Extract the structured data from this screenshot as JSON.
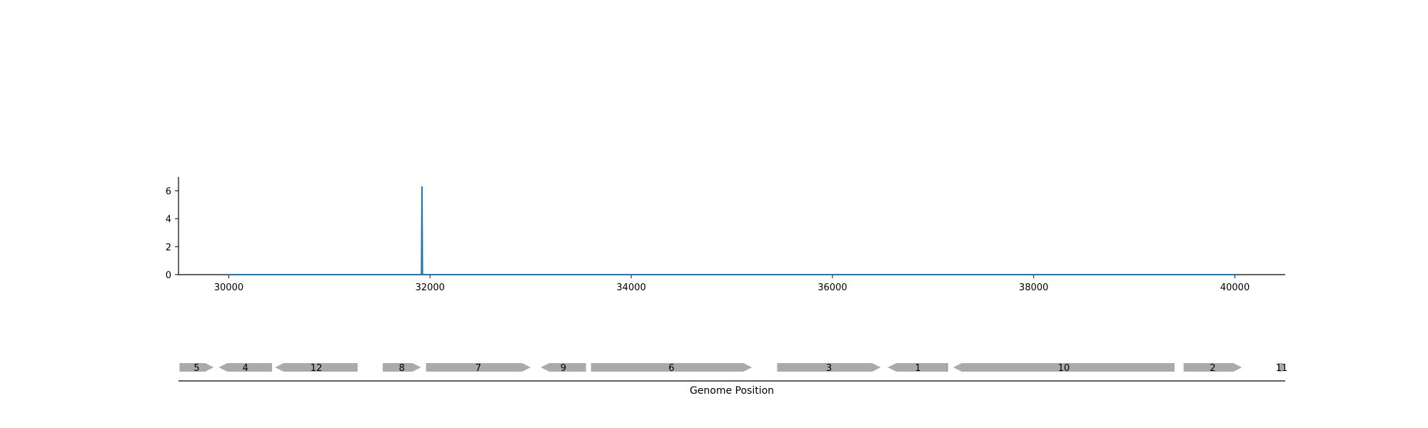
{
  "chart_data": [
    {
      "type": "line",
      "title": "",
      "xlabel": "",
      "ylabel": "",
      "xlim": [
        29500,
        40500
      ],
      "ylim": [
        0,
        7
      ],
      "x_ticks": [
        30000,
        32000,
        34000,
        36000,
        38000,
        40000
      ],
      "x_tick_labels": [
        "30000",
        "32000",
        "34000",
        "36000",
        "38000",
        "40000"
      ],
      "y_ticks": [
        0,
        2,
        4,
        6
      ],
      "y_tick_labels": [
        "0",
        "2",
        "4",
        "6"
      ],
      "line_color": "#1f77b4",
      "series": [
        {
          "x": [
            30000,
            31915,
            31920,
            31925,
            40000
          ],
          "y": [
            0,
            0,
            6.3,
            0,
            0
          ]
        }
      ],
      "grid": false
    },
    {
      "type": "gene-map",
      "title": "",
      "xlabel": "Genome Position",
      "xlim": [
        29500,
        40500
      ],
      "gene_color": "#aaaaaa",
      "genes": [
        {
          "label": "5",
          "start": 29510,
          "end": 29850,
          "strand": "+"
        },
        {
          "label": "4",
          "start": 29900,
          "end": 30430,
          "strand": "-"
        },
        {
          "label": "12",
          "start": 30460,
          "end": 31280,
          "strand": "-"
        },
        {
          "label": "8",
          "start": 31530,
          "end": 31910,
          "strand": "+"
        },
        {
          "label": "7",
          "start": 31960,
          "end": 33000,
          "strand": "+"
        },
        {
          "label": "9",
          "start": 33100,
          "end": 33550,
          "strand": "-"
        },
        {
          "label": "6",
          "start": 33600,
          "end": 35200,
          "strand": "+"
        },
        {
          "label": "3",
          "start": 35450,
          "end": 36480,
          "strand": "+"
        },
        {
          "label": "1",
          "start": 36550,
          "end": 37150,
          "strand": "-"
        },
        {
          "label": "10",
          "start": 37200,
          "end": 39400,
          "strand": "-"
        },
        {
          "label": "2",
          "start": 39490,
          "end": 40070,
          "strand": "+"
        },
        {
          "label": "11",
          "start": 40430,
          "end": 40500,
          "strand": "+"
        }
      ]
    }
  ]
}
